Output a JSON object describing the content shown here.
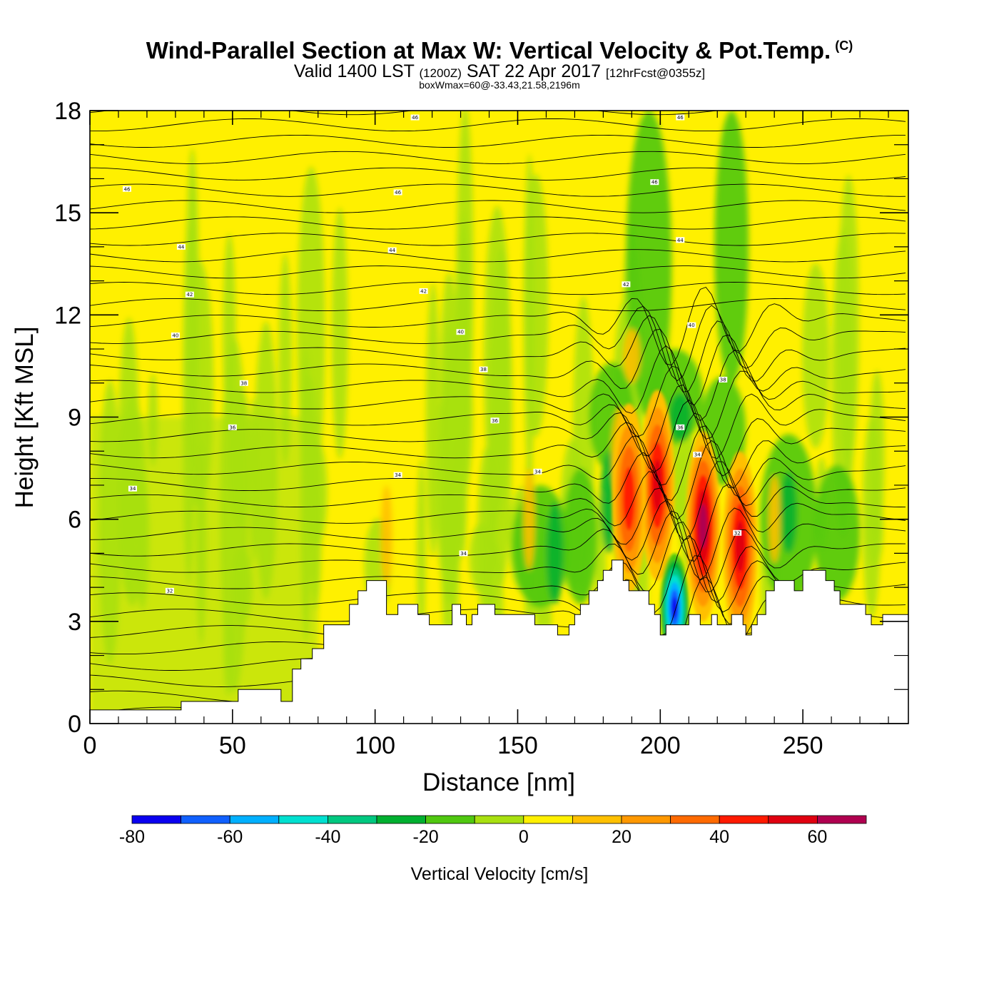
{
  "header": {
    "title": "Wind-Parallel Section at Max W: Vertical Velocity & Pot.Temp.",
    "copyright": "(C)",
    "valid_prefix": "Valid 1400 LST",
    "valid_utc": "(1200Z)",
    "valid_date": "SAT 22 Apr 2017",
    "forecast": "[12hrFcst@0355z]",
    "box_info": "boxWmax=60@-33.43,21.58,2196m"
  },
  "chart_data": {
    "type": "heatmap",
    "xlabel": "Distance [nm]",
    "ylabel": "Height [Kft MSL]",
    "xlim": [
      0,
      287
    ],
    "ylim": [
      0,
      18
    ],
    "x_ticks": [
      "0",
      "50",
      "100",
      "150",
      "200",
      "250"
    ],
    "y_ticks": [
      "0",
      "3",
      "6",
      "9",
      "12",
      "15",
      "18"
    ],
    "colorbar": {
      "title": "Vertical Velocity [cm/s]",
      "tick_labels": [
        "-80",
        "-60",
        "-40",
        "-20",
        "0",
        "20",
        "40",
        "60"
      ],
      "levels": [
        -80,
        -70,
        -60,
        -50,
        -40,
        -30,
        -20,
        -10,
        0,
        10,
        20,
        30,
        40,
        50,
        60,
        70
      ],
      "colors": [
        "#0a00f0",
        "#1060ff",
        "#00b0ff",
        "#00e0d0",
        "#00c880",
        "#00b030",
        "#50c810",
        "#a8e010",
        "#fff000",
        "#ffc000",
        "#ff9800",
        "#ff6a00",
        "#ff1a00",
        "#e00010",
        "#b00050"
      ]
    },
    "terrain": [
      [
        0,
        0.4
      ],
      [
        32,
        0.4
      ],
      [
        32,
        0.65
      ],
      [
        52,
        0.65
      ],
      [
        52,
        1.0
      ],
      [
        67,
        1.0
      ],
      [
        67,
        0.65
      ],
      [
        71,
        0.65
      ],
      [
        71,
        1.6
      ],
      [
        74,
        1.6
      ],
      [
        74,
        1.9
      ],
      [
        78,
        1.9
      ],
      [
        78,
        2.2
      ],
      [
        82,
        2.2
      ],
      [
        82,
        2.9
      ],
      [
        91,
        2.9
      ],
      [
        91,
        3.5
      ],
      [
        94,
        3.5
      ],
      [
        94,
        3.9
      ],
      [
        97,
        3.9
      ],
      [
        97,
        4.2
      ],
      [
        104,
        4.2
      ],
      [
        104,
        3.2
      ],
      [
        108,
        3.2
      ],
      [
        108,
        3.5
      ],
      [
        115,
        3.5
      ],
      [
        115,
        3.2
      ],
      [
        119,
        3.2
      ],
      [
        119,
        2.9
      ],
      [
        127,
        2.9
      ],
      [
        127,
        3.5
      ],
      [
        130,
        3.5
      ],
      [
        130,
        3.2
      ],
      [
        132,
        3.2
      ],
      [
        132,
        2.9
      ],
      [
        134,
        2.9
      ],
      [
        134,
        3.2
      ],
      [
        136,
        3.2
      ],
      [
        136,
        3.5
      ],
      [
        142,
        3.5
      ],
      [
        142,
        3.2
      ],
      [
        156,
        3.2
      ],
      [
        156,
        2.9
      ],
      [
        164,
        2.9
      ],
      [
        164,
        2.6
      ],
      [
        168,
        2.6
      ],
      [
        168,
        2.9
      ],
      [
        170,
        2.9
      ],
      [
        170,
        3.2
      ],
      [
        172,
        3.2
      ],
      [
        172,
        3.5
      ],
      [
        175,
        3.5
      ],
      [
        175,
        3.9
      ],
      [
        178,
        3.9
      ],
      [
        178,
        4.2
      ],
      [
        180,
        4.2
      ],
      [
        180,
        4.5
      ],
      [
        183,
        4.5
      ],
      [
        183,
        4.8
      ],
      [
        187,
        4.8
      ],
      [
        187,
        4.2
      ],
      [
        189,
        4.2
      ],
      [
        189,
        3.9
      ],
      [
        196,
        3.9
      ],
      [
        196,
        3.5
      ],
      [
        198,
        3.5
      ],
      [
        198,
        3.2
      ],
      [
        200,
        3.2
      ],
      [
        200,
        2.6
      ],
      [
        202,
        2.6
      ],
      [
        202,
        2.9
      ],
      [
        210,
        2.9
      ],
      [
        210,
        3.2
      ],
      [
        214,
        3.2
      ],
      [
        214,
        2.9
      ],
      [
        218,
        2.9
      ],
      [
        218,
        3.2
      ],
      [
        220,
        3.2
      ],
      [
        220,
        2.9
      ],
      [
        225,
        2.9
      ],
      [
        225,
        3.2
      ],
      [
        229,
        3.2
      ],
      [
        229,
        2.9
      ],
      [
        230,
        2.9
      ],
      [
        230,
        2.6
      ],
      [
        232,
        2.6
      ],
      [
        232,
        2.9
      ],
      [
        234,
        2.9
      ],
      [
        234,
        3.2
      ],
      [
        237,
        3.2
      ],
      [
        237,
        3.9
      ],
      [
        240,
        3.9
      ],
      [
        240,
        4.2
      ],
      [
        247,
        4.2
      ],
      [
        247,
        3.9
      ],
      [
        250,
        3.9
      ],
      [
        250,
        4.5
      ],
      [
        258,
        4.5
      ],
      [
        258,
        4.2
      ],
      [
        261,
        4.2
      ],
      [
        261,
        3.9
      ],
      [
        263,
        3.9
      ],
      [
        263,
        3.5
      ],
      [
        272,
        3.5
      ],
      [
        272,
        3.2
      ],
      [
        274,
        3.2
      ],
      [
        274,
        2.9
      ],
      [
        278,
        2.9
      ],
      [
        278,
        3.2
      ],
      [
        287,
        3.2
      ]
    ],
    "theta_labels": [
      {
        "value": "46",
        "x": 114,
        "y": 17.8
      },
      {
        "value": "46",
        "x": 207,
        "y": 17.8
      },
      {
        "value": "46",
        "x": 13,
        "y": 15.7
      },
      {
        "value": "46",
        "x": 108,
        "y": 15.6
      },
      {
        "value": "46",
        "x": 198,
        "y": 15.9
      },
      {
        "value": "44",
        "x": 32,
        "y": 14.0
      },
      {
        "value": "44",
        "x": 106,
        "y": 13.9
      },
      {
        "value": "44",
        "x": 207,
        "y": 14.2
      },
      {
        "value": "42",
        "x": 35,
        "y": 12.6
      },
      {
        "value": "42",
        "x": 117,
        "y": 12.7
      },
      {
        "value": "42",
        "x": 188,
        "y": 12.9
      },
      {
        "value": "40",
        "x": 30,
        "y": 11.4
      },
      {
        "value": "40",
        "x": 130,
        "y": 11.5
      },
      {
        "value": "40",
        "x": 211,
        "y": 11.7
      },
      {
        "value": "38",
        "x": 54,
        "y": 10.0
      },
      {
        "value": "38",
        "x": 138,
        "y": 10.4
      },
      {
        "value": "38",
        "x": 222,
        "y": 10.1
      },
      {
        "value": "36",
        "x": 50,
        "y": 8.7
      },
      {
        "value": "36",
        "x": 142,
        "y": 8.9
      },
      {
        "value": "36",
        "x": 207,
        "y": 8.7
      },
      {
        "value": "34",
        "x": 15,
        "y": 6.9
      },
      {
        "value": "34",
        "x": 108,
        "y": 7.3
      },
      {
        "value": "34",
        "x": 157,
        "y": 7.4
      },
      {
        "value": "34",
        "x": 213,
        "y": 7.9
      },
      {
        "value": "34",
        "x": 131,
        "y": 5.0
      },
      {
        "value": "32",
        "x": 28,
        "y": 3.9
      },
      {
        "value": "32",
        "x": 227,
        "y": 5.6
      }
    ],
    "updraft_cores": [
      {
        "x": 215,
        "y": 5.8,
        "w": 60
      },
      {
        "x": 228,
        "y": 5.2,
        "w": 55
      },
      {
        "x": 199,
        "y": 7.0,
        "w": 55
      },
      {
        "x": 189,
        "y": 6.6,
        "w": 45
      }
    ],
    "downdraft_cores": [
      {
        "x": 205,
        "y": 3.4,
        "w": -70
      }
    ]
  }
}
